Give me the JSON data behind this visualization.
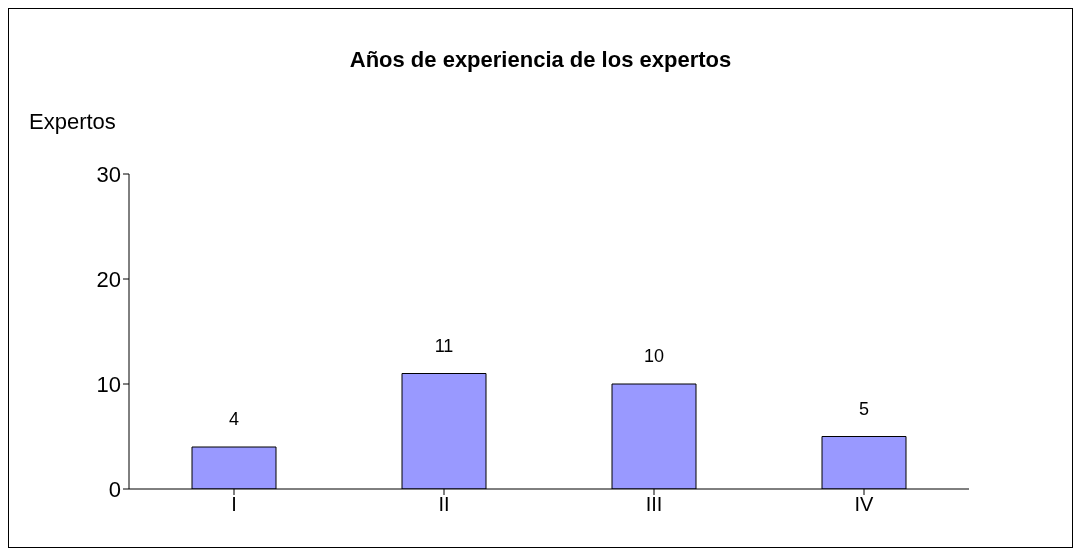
{
  "chart_data": {
    "type": "bar",
    "title": "Años de experiencia de los expertos",
    "ylabel": "Expertos",
    "categories": [
      "I",
      "II",
      "III",
      "IV"
    ],
    "values": [
      4,
      11,
      10,
      5
    ],
    "color": "#9999ff",
    "ylim": [
      0,
      30
    ],
    "yticks": [
      0,
      10,
      20,
      30
    ],
    "grid": false,
    "legend": false,
    "data_labels": true
  }
}
